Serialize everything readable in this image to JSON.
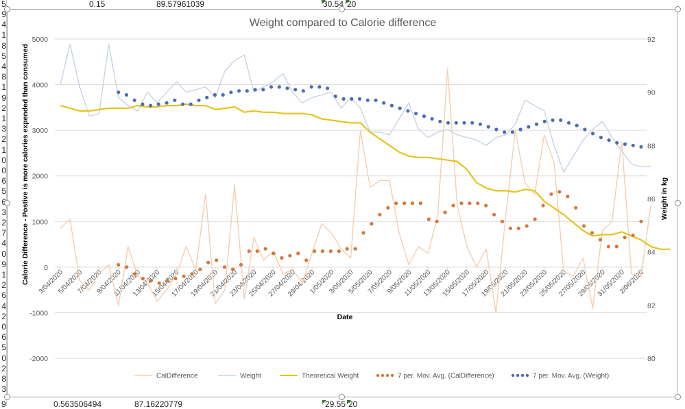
{
  "spreadsheet": {
    "top_row": {
      "cells": [
        "0.15",
        "89.57961039",
        "30.54",
        "20"
      ],
      "row_label": "5"
    },
    "bottom_row": {
      "cells": [
        "0.563506494",
        "87.16220779",
        "29.55",
        "20"
      ],
      "row_label": "9"
    },
    "row_labels": [
      "9",
      "4",
      "1",
      "8",
      "5",
      "4",
      "8",
      "1",
      "9",
      "2",
      "1",
      "3",
      "2",
      "1",
      "0",
      "0",
      "6",
      "5",
      "6",
      "3",
      "2",
      "7",
      "4",
      "0",
      "9",
      "1",
      "2",
      "6",
      "4",
      "2",
      "0",
      "6",
      "5",
      "0",
      "2",
      "8",
      "3"
    ]
  },
  "chart_data": {
    "type": "line",
    "title": "Weight compared to Calorie difference",
    "xlabel": "Date",
    "ylabel": "Calorie Difference - Postive is more calories expended than consumed",
    "y2label": "Weight in kg",
    "ylim": [
      -2000,
      5000
    ],
    "y2lim": [
      80,
      92
    ],
    "yticks": [
      "5000",
      "4000",
      "3000",
      "2000",
      "1000",
      "0",
      "-1000",
      "-2000"
    ],
    "y2ticks": [
      "92",
      "90",
      "88",
      "86",
      "84",
      "82",
      "80"
    ],
    "xtick_labels": [
      "3/04/2020",
      "5/04/2020",
      "7/04/2020",
      "9/04/2020",
      "11/04/2020",
      "13/04/2020",
      "15/04/2020",
      "17/04/2020",
      "19/04/2020",
      "21/04/2020",
      "23/04/2020",
      "25/04/2020",
      "27/04/2020",
      "29/04/2020",
      "1/05/2020",
      "3/05/2020",
      "5/05/2020",
      "7/05/2020",
      "9/05/2020",
      "11/05/2020",
      "13/05/2020",
      "15/05/2020",
      "17/05/2020",
      "19/05/2020",
      "21/05/2020",
      "23/05/2020",
      "25/05/2020",
      "27/05/2020",
      "29/05/2020",
      "31/05/2020",
      "2/06/2020"
    ],
    "grid": true,
    "legend_position": "bottom",
    "x_start": "3/04/2020",
    "x_days": 61,
    "series": [
      {
        "name": "CalDifference",
        "axis": "left",
        "style": "line",
        "color": "#f4cdb0",
        "values": [
          850,
          1050,
          -300,
          -500,
          -150,
          50,
          -850,
          450,
          -200,
          -350,
          -750,
          -500,
          -150,
          450,
          -50,
          1600,
          -800,
          -500,
          1800,
          -700,
          650,
          150,
          350,
          -150,
          -50,
          -350,
          300,
          950,
          750,
          400,
          200,
          3000,
          1750,
          1900,
          1900,
          750,
          50,
          450,
          300,
          1150,
          4350,
          1350,
          450,
          0,
          400,
          -1000,
          1100,
          3000,
          1850,
          1600,
          2900,
          2300,
          -100,
          -200,
          200,
          -900,
          800,
          1000,
          2750,
          -150,
          -200,
          1350
        ]
      },
      {
        "name": "Weight",
        "axis": "right",
        "style": "line",
        "color": "#c5d3e6",
        "values": [
          90.3,
          91.8,
          90.2,
          89.1,
          89.2,
          91.8,
          89.8,
          89.5,
          89.3,
          90,
          89.6,
          90.0,
          90.4,
          90.0,
          90.1,
          90.2,
          89.8,
          90.8,
          91.2,
          91.4,
          90.0,
          90.2,
          90.4,
          90.7,
          90.0,
          89.6,
          89.8,
          89.9,
          90.0,
          89.4,
          89.8,
          89.4,
          88.5,
          88.5,
          88.4,
          89.0,
          89.6,
          88.6,
          88.3,
          88.5,
          88.6,
          88.4,
          88.3,
          88.2,
          88.0,
          88.3,
          88.4,
          88.8,
          89.7,
          89.5,
          89.3,
          88.0,
          87.0,
          87.6,
          88.2,
          88.6,
          88.9,
          88.3,
          87.8,
          87.3,
          87.2,
          87.2
        ]
      },
      {
        "name": "Theoretical Weight",
        "axis": "right",
        "style": "line",
        "color": "#e8c21b",
        "values": [
          89.5,
          89.4,
          89.3,
          89.3,
          89.35,
          89.4,
          89.4,
          89.4,
          89.5,
          89.45,
          89.45,
          89.5,
          89.5,
          89.55,
          89.5,
          89.5,
          89.35,
          89.4,
          89.45,
          89.25,
          89.3,
          89.25,
          89.25,
          89.2,
          89.2,
          89.2,
          89.15,
          89.0,
          88.95,
          88.9,
          88.85,
          88.85,
          88.5,
          88.25,
          88.0,
          87.75,
          87.6,
          87.55,
          87.55,
          87.5,
          87.45,
          87.4,
          87.1,
          86.6,
          86.4,
          86.3,
          86.3,
          86.25,
          86.35,
          86.3,
          85.9,
          85.65,
          85.4,
          85.1,
          84.8,
          84.6,
          84.65,
          84.65,
          84.75,
          84.6,
          84.45,
          84.2,
          84.1,
          84.1
        ]
      },
      {
        "name": "7 per. Mov. Avg. (CalDifference)",
        "axis": "left",
        "style": "dots",
        "color": "#d5763a",
        "start_index": 6,
        "values": [
          50,
          0,
          -150,
          -250,
          -300,
          -350,
          -300,
          -250,
          -200,
          -150,
          -50,
          100,
          150,
          0,
          -50,
          50,
          350,
          350,
          400,
          300,
          200,
          250,
          300,
          150,
          350,
          350,
          350,
          350,
          400,
          400,
          750,
          950,
          1150,
          1300,
          1400,
          1400,
          1400,
          1400,
          1050,
          1000,
          1200,
          1350,
          1400,
          1400,
          1400,
          1350,
          1150,
          1000,
          850,
          850,
          900,
          1050,
          1350,
          1600,
          1650,
          1550,
          1300,
          900,
          750,
          600,
          450,
          450,
          650,
          700,
          1000
        ]
      },
      {
        "name": "7 per. Mov. Avg. (Weight)",
        "axis": "right",
        "style": "dots",
        "color": "#4a6fb0",
        "start_index": 6,
        "values": [
          90.0,
          89.9,
          89.7,
          89.55,
          89.5,
          89.55,
          89.6,
          89.7,
          89.55,
          89.55,
          89.7,
          89.8,
          89.9,
          89.9,
          90.0,
          90.05,
          90.05,
          90.1,
          90.1,
          90.2,
          90.2,
          90.15,
          90.1,
          90.05,
          90.2,
          90.2,
          90.15,
          89.85,
          89.75,
          89.75,
          89.75,
          89.7,
          89.7,
          89.6,
          89.5,
          89.4,
          89.3,
          89.2,
          89.1,
          89.0,
          88.9,
          88.85,
          88.85,
          88.85,
          88.85,
          88.8,
          88.7,
          88.6,
          88.5,
          88.5,
          88.6,
          88.7,
          88.8,
          88.9,
          88.95,
          88.95,
          88.85,
          88.75,
          88.6,
          88.45,
          88.3,
          88.2,
          88.1,
          88.05,
          88.0,
          87.95
        ]
      }
    ]
  },
  "legend": [
    {
      "label": "CalDifference",
      "style": "line",
      "color": "#f4cdb0"
    },
    {
      "label": "Weight",
      "style": "line",
      "color": "#c5d3e6"
    },
    {
      "label": "Theoretical Weight",
      "style": "line",
      "color": "#e8c21b"
    },
    {
      "label": "7 per. Mov. Avg. (CalDifference)",
      "style": "dots",
      "color": "#d5763a"
    },
    {
      "label": "7 per. Mov. Avg. (Weight)",
      "style": "dots",
      "color": "#4a6fb0"
    }
  ]
}
